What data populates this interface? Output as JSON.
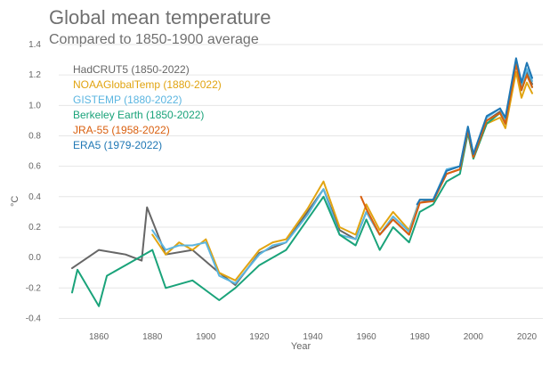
{
  "chart_data": {
    "type": "line",
    "title": "Global mean temperature",
    "subtitle": "Compared to 1850-1900 average",
    "xlabel": "Year",
    "ylabel": "°C",
    "xlim": [
      1845,
      2026
    ],
    "ylim": [
      -0.45,
      1.4
    ],
    "x_ticks": [
      1860,
      1880,
      1900,
      1920,
      1940,
      1960,
      1980,
      2000,
      2020
    ],
    "y_ticks": [
      -0.4,
      -0.2,
      0.0,
      0.2,
      0.4,
      0.6,
      0.8,
      1.0,
      1.2,
      1.4
    ],
    "y_tick_labels": [
      "-0.4",
      "-0.2",
      "0.0",
      "0.2",
      "0.4",
      "0.6",
      "0.8",
      "1.0",
      "1.2",
      "1.4"
    ],
    "grid": "horizontal",
    "legend_position": "top-left",
    "series": [
      {
        "name": "HadCRUT5 (1850-2022)",
        "color": "#666666",
        "x": [
          1850,
          1860,
          1870,
          1876,
          1878,
          1885,
          1895,
          1905,
          1911,
          1920,
          1930,
          1938,
          1944,
          1950,
          1956,
          1960,
          1965,
          1970,
          1976,
          1980,
          1985,
          1990,
          1995,
          1998,
          2000,
          2005,
          2010,
          2012,
          2016,
          2018,
          2020,
          2022
        ],
        "values": [
          -0.07,
          0.05,
          0.02,
          -0.02,
          0.33,
          0.02,
          0.05,
          -0.1,
          -0.18,
          0.03,
          0.1,
          0.3,
          0.45,
          0.18,
          0.12,
          0.3,
          0.15,
          0.25,
          0.15,
          0.36,
          0.38,
          0.55,
          0.58,
          0.85,
          0.68,
          0.9,
          0.96,
          0.88,
          1.29,
          1.1,
          1.22,
          1.14
        ]
      },
      {
        "name": "NOAAGlobalTemp (1880-2022)",
        "color": "#e1a411",
        "x": [
          1880,
          1885,
          1890,
          1895,
          1900,
          1905,
          1911,
          1920,
          1925,
          1930,
          1938,
          1944,
          1950,
          1956,
          1960,
          1965,
          1970,
          1976,
          1980,
          1985,
          1990,
          1995,
          1998,
          2000,
          2005,
          2010,
          2012,
          2016,
          2018,
          2020,
          2022
        ],
        "values": [
          0.15,
          0.02,
          0.1,
          0.05,
          0.12,
          -0.1,
          -0.15,
          0.05,
          0.1,
          0.12,
          0.32,
          0.5,
          0.2,
          0.15,
          0.35,
          0.18,
          0.3,
          0.18,
          0.38,
          0.38,
          0.55,
          0.58,
          0.82,
          0.65,
          0.88,
          0.92,
          0.85,
          1.22,
          1.05,
          1.15,
          1.08
        ]
      },
      {
        "name": "GISTEMP (1880-2022)",
        "color": "#5bb5e0",
        "x": [
          1880,
          1885,
          1890,
          1895,
          1900,
          1905,
          1911,
          1920,
          1925,
          1930,
          1938,
          1944,
          1950,
          1956,
          1960,
          1965,
          1970,
          1976,
          1980,
          1985,
          1990,
          1995,
          1998,
          2000,
          2005,
          2010,
          2012,
          2016,
          2018,
          2020,
          2022
        ],
        "values": [
          0.18,
          0.05,
          0.08,
          0.08,
          0.1,
          -0.12,
          -0.17,
          0.02,
          0.08,
          0.1,
          0.28,
          0.45,
          0.15,
          0.12,
          0.3,
          0.15,
          0.27,
          0.17,
          0.38,
          0.38,
          0.58,
          0.6,
          0.86,
          0.68,
          0.92,
          0.98,
          0.9,
          1.28,
          1.12,
          1.24,
          1.16
        ]
      },
      {
        "name": "Berkeley Earth (1850-2022)",
        "color": "#1aa37a",
        "x": [
          1850,
          1852,
          1860,
          1863,
          1870,
          1880,
          1885,
          1895,
          1905,
          1911,
          1920,
          1930,
          1938,
          1944,
          1950,
          1956,
          1960,
          1965,
          1970,
          1976,
          1980,
          1985,
          1990,
          1995,
          1998,
          2000,
          2005,
          2010,
          2012,
          2016,
          2018,
          2020,
          2022
        ],
        "values": [
          -0.23,
          -0.08,
          -0.32,
          -0.12,
          -0.05,
          0.05,
          -0.2,
          -0.15,
          -0.28,
          -0.2,
          -0.05,
          0.05,
          0.25,
          0.4,
          0.15,
          0.08,
          0.25,
          0.05,
          0.2,
          0.1,
          0.3,
          0.35,
          0.5,
          0.55,
          0.82,
          0.65,
          0.88,
          0.95,
          0.88,
          1.28,
          1.1,
          1.2,
          1.12
        ]
      },
      {
        "name": "JRA-55 (1958-2022)",
        "color": "#d95f0e",
        "x": [
          1958,
          1960,
          1965,
          1970,
          1976,
          1980,
          1985,
          1990,
          1995,
          1998,
          2000,
          2005,
          2010,
          2012,
          2016,
          2018,
          2020,
          2022
        ],
        "values": [
          0.4,
          0.32,
          0.15,
          0.25,
          0.15,
          0.36,
          0.37,
          0.55,
          0.58,
          0.84,
          0.66,
          0.9,
          0.95,
          0.88,
          1.27,
          1.1,
          1.2,
          1.12
        ]
      },
      {
        "name": "ERA5 (1979-2022)",
        "color": "#1f77b4",
        "x": [
          1979,
          1980,
          1985,
          1990,
          1995,
          1998,
          2000,
          2005,
          2010,
          2012,
          2016,
          2018,
          2020,
          2022
        ],
        "values": [
          0.35,
          0.38,
          0.38,
          0.57,
          0.6,
          0.86,
          0.68,
          0.93,
          0.98,
          0.92,
          1.31,
          1.15,
          1.28,
          1.18
        ]
      }
    ]
  }
}
